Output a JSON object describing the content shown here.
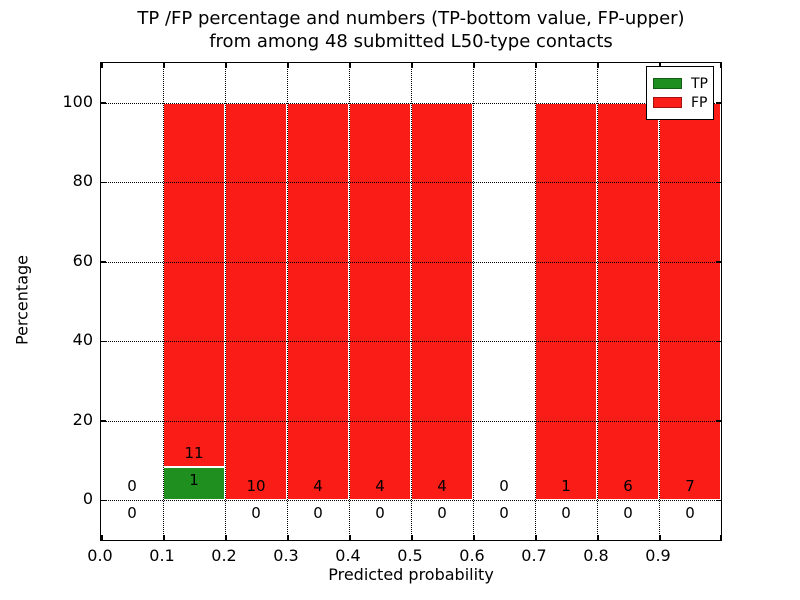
{
  "chart_data": {
    "type": "bar",
    "stacked": true,
    "title_lines": [
      "TP /FP percentage and numbers (TP-bottom value, FP-upper)",
      "from among 48 submitted L50-type contacts"
    ],
    "xlabel": "Predicted probability",
    "ylabel": "Percentage",
    "x_tick_labels": [
      "0.0",
      "0.1",
      "0.2",
      "0.3",
      "0.4",
      "0.5",
      "0.6",
      "0.7",
      "0.8",
      "0.9"
    ],
    "y_tick_labels": [
      "0",
      "20",
      "40",
      "60",
      "80",
      "100"
    ],
    "y_ticks": [
      0,
      20,
      40,
      60,
      80,
      100
    ],
    "xlim": [
      0.0,
      1.0
    ],
    "ylim": [
      -10,
      110
    ],
    "grid": true,
    "legend": {
      "position": "upper right",
      "items": [
        {
          "name": "TP",
          "color": "#1f8f1f"
        },
        {
          "name": "FP",
          "color": "#fa1d17"
        }
      ]
    },
    "bins": [
      {
        "x_range": [
          0.0,
          0.1
        ],
        "tp_count": "0",
        "fp_count": "0",
        "tp_pct": 0,
        "fp_pct": 0
      },
      {
        "x_range": [
          0.1,
          0.2
        ],
        "tp_count": "1",
        "fp_count": "11",
        "tp_pct": 8.33,
        "fp_pct": 91.67
      },
      {
        "x_range": [
          0.2,
          0.3
        ],
        "tp_count": "0",
        "fp_count": "10",
        "tp_pct": 0,
        "fp_pct": 100
      },
      {
        "x_range": [
          0.3,
          0.4
        ],
        "tp_count": "0",
        "fp_count": "4",
        "tp_pct": 0,
        "fp_pct": 100
      },
      {
        "x_range": [
          0.4,
          0.5
        ],
        "tp_count": "0",
        "fp_count": "4",
        "tp_pct": 0,
        "fp_pct": 100
      },
      {
        "x_range": [
          0.5,
          0.6
        ],
        "tp_count": "0",
        "fp_count": "4",
        "tp_pct": 0,
        "fp_pct": 100
      },
      {
        "x_range": [
          0.6,
          0.7
        ],
        "tp_count": "0",
        "fp_count": "0",
        "tp_pct": 0,
        "fp_pct": 0
      },
      {
        "x_range": [
          0.7,
          0.8
        ],
        "tp_count": "0",
        "fp_count": "1",
        "tp_pct": 0,
        "fp_pct": 100
      },
      {
        "x_range": [
          0.8,
          0.9
        ],
        "tp_count": "0",
        "fp_count": "6",
        "tp_pct": 0,
        "fp_pct": 100
      },
      {
        "x_range": [
          0.9,
          1.0
        ],
        "tp_count": "0",
        "fp_count": "7",
        "tp_pct": 0,
        "fp_pct": 100
      }
    ],
    "colors": {
      "tp": "#1f8f1f",
      "fp": "#fa1d17",
      "grid": "#000000",
      "background": "#ffffff"
    }
  }
}
